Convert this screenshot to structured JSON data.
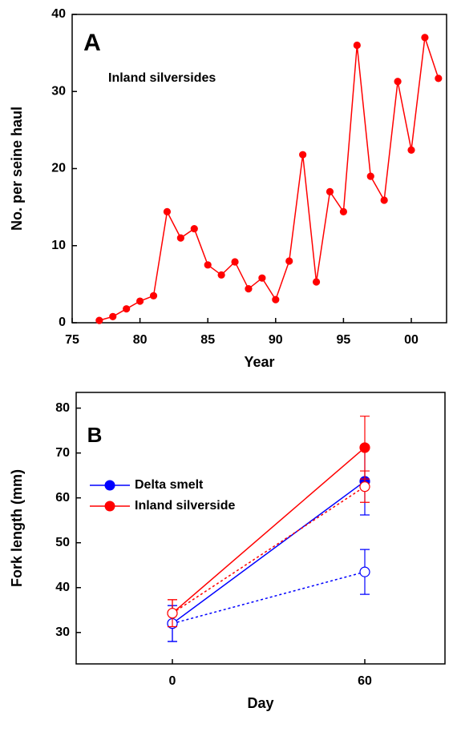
{
  "chart_data": [
    {
      "type": "line",
      "title": "A",
      "annotation": "Inland silversides",
      "x_label": "Year",
      "y_label": "No. per seine haul",
      "x": [
        77,
        78,
        79,
        80,
        81,
        82,
        83,
        84,
        85,
        86,
        87,
        88,
        89,
        90,
        91,
        92,
        93,
        94,
        95,
        96,
        97,
        98,
        99,
        100,
        101,
        102
      ],
      "series": [
        {
          "color": "#ff0000",
          "values": [
            0.3,
            0.8,
            1.8,
            2.8,
            3.5,
            14.4,
            11,
            12.2,
            7.5,
            6.2,
            7.9,
            4.4,
            5.8,
            3,
            8,
            21.8,
            5.3,
            17,
            14.4,
            36,
            19,
            15.9,
            31.3,
            22.4,
            37,
            31.7
          ]
        }
      ],
      "xlim": [
        75,
        102.6
      ],
      "xticks": [
        75,
        80,
        85,
        90,
        95,
        {
          "value": 100,
          "label": "00"
        }
      ],
      "ylim": [
        0,
        40
      ],
      "yticks": [
        0,
        10,
        20,
        30,
        40
      ]
    },
    {
      "type": "line",
      "title": "B",
      "x_label": "Day",
      "y_label": "Fork length (mm)",
      "x": [
        0,
        60
      ],
      "series": [
        {
          "name": "Delta smelt",
          "color": "#0000ff",
          "values": [
            32,
            63.7
          ],
          "errors": [
            4,
            7.5
          ],
          "style": "solid"
        },
        {
          "name": "Inland silverside",
          "color": "#ff0000",
          "values": [
            34.3,
            71.2
          ],
          "errors": [
            3,
            7
          ],
          "style": "solid"
        },
        {
          "color": "#0000ff",
          "values": [
            32,
            43.5
          ],
          "errors": [
            4,
            5
          ],
          "style": "dotted"
        },
        {
          "color": "#ff0000",
          "values": [
            34.3,
            62.5
          ],
          "errors": [
            3,
            3.5
          ],
          "style": "dotted"
        }
      ],
      "xlim": [
        -30,
        85
      ],
      "xticks": [
        0,
        60
      ],
      "ylim": [
        23,
        83.5
      ],
      "yticks": [
        30,
        40,
        50,
        60,
        70,
        80
      ],
      "legend": "upper left"
    }
  ]
}
